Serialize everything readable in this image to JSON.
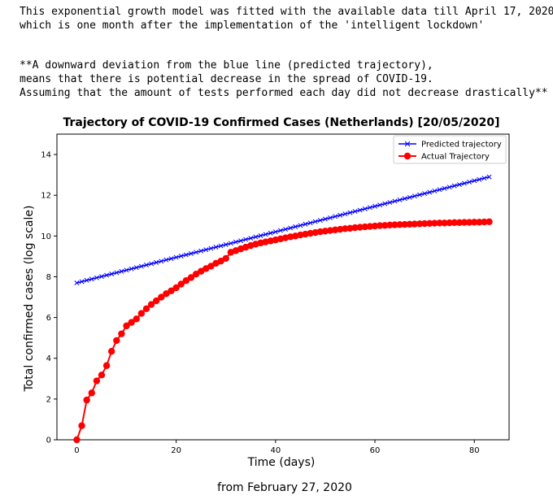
{
  "notes": {
    "line1": "This exponential growth model was fitted with the available data till April 17, 2020",
    "line2": "which is one month after the implementation of the 'intelligent lockdown'",
    "line3": "**A downward deviation from the blue line (predicted trajectory),",
    "line4": "means that there is potential decrease in the spread of COVID-19.",
    "line5": "Assuming that the amount of tests performed each day did not decrease drastically**"
  },
  "caption": "from February 27, 2020",
  "colors": {
    "predicted": "#0000ff",
    "actual": "#ff0000"
  },
  "chart_data": {
    "type": "line",
    "title": "Trajectory of COVID-19 Confirmed Cases (Netherlands) [20/05/2020]",
    "xlabel": "Time (days)",
    "ylabel": "Total confirmed cases (log scale)",
    "xlim": [
      -4,
      87
    ],
    "ylim": [
      0,
      15
    ],
    "xticks": [
      0,
      20,
      40,
      60,
      80
    ],
    "yticks": [
      0,
      2,
      4,
      6,
      8,
      10,
      12,
      14
    ],
    "legend_position": "top-right",
    "grid": false,
    "series": [
      {
        "name": "Predicted trajectory",
        "marker": "x",
        "x_start": 0,
        "x_end": 83,
        "y_start": 7.7,
        "y_end": 12.9
      },
      {
        "name": "Actual Trajectory",
        "marker": "o",
        "x": [
          0,
          1,
          2,
          3,
          4,
          5,
          6,
          7,
          8,
          9,
          10,
          11,
          12,
          13,
          14,
          15,
          16,
          17,
          18,
          19,
          20,
          21,
          22,
          23,
          24,
          25,
          26,
          27,
          28,
          29,
          30,
          31,
          32,
          33,
          34,
          35,
          36,
          37,
          38,
          39,
          40,
          41,
          42,
          43,
          44,
          45,
          46,
          47,
          48,
          49,
          50,
          51,
          52,
          53,
          54,
          55,
          56,
          57,
          58,
          59,
          60,
          61,
          62,
          63,
          64,
          65,
          66,
          67,
          68,
          69,
          70,
          71,
          72,
          73,
          74,
          75,
          76,
          77,
          78,
          79,
          80,
          81,
          82,
          83
        ],
        "y": [
          0.0,
          0.69,
          1.95,
          2.3,
          2.89,
          3.18,
          3.64,
          4.34,
          4.87,
          5.2,
          5.59,
          5.76,
          5.93,
          6.2,
          6.43,
          6.64,
          6.82,
          7.0,
          7.17,
          7.31,
          7.46,
          7.64,
          7.81,
          7.96,
          8.13,
          8.27,
          8.4,
          8.52,
          8.66,
          8.77,
          8.9,
          9.2,
          9.28,
          9.37,
          9.45,
          9.53,
          9.6,
          9.66,
          9.71,
          9.76,
          9.81,
          9.86,
          9.91,
          9.96,
          10.0,
          10.05,
          10.09,
          10.13,
          10.17,
          10.21,
          10.24,
          10.27,
          10.3,
          10.33,
          10.36,
          10.38,
          10.41,
          10.43,
          10.45,
          10.47,
          10.49,
          10.51,
          10.52,
          10.54,
          10.55,
          10.56,
          10.57,
          10.58,
          10.59,
          10.6,
          10.61,
          10.62,
          10.63,
          10.64,
          10.64,
          10.65,
          10.66,
          10.66,
          10.67,
          10.67,
          10.68,
          10.68,
          10.69,
          10.7
        ]
      }
    ]
  }
}
